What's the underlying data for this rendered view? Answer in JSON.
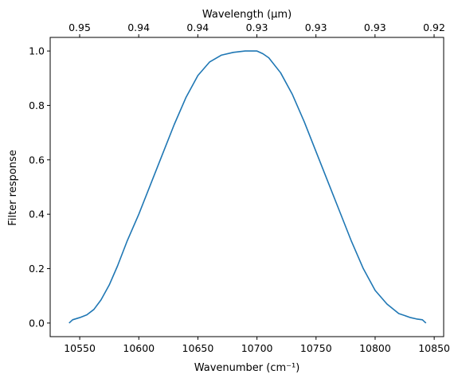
{
  "chart_data": {
    "type": "line",
    "title": "",
    "xlabel": "Wavenumber (cm⁻¹)",
    "ylabel": "Filter response",
    "top_xlabel": "Wavelength (μm)",
    "xlim": [
      10525,
      10858
    ],
    "ylim": [
      -0.05,
      1.05
    ],
    "x_ticks": [
      10550,
      10600,
      10650,
      10700,
      10750,
      10800,
      10850
    ],
    "x_tick_labels": [
      "10550",
      "10600",
      "10650",
      "10700",
      "10750",
      "10800",
      "10850"
    ],
    "y_ticks": [
      0.0,
      0.2,
      0.4,
      0.6,
      0.8,
      1.0
    ],
    "y_tick_labels": [
      "0.0",
      "0.2",
      "0.4",
      "0.6",
      "0.8",
      "1.0"
    ],
    "top_tick_labels": [
      "0.95",
      "0.94",
      "0.94",
      "0.93",
      "0.93",
      "0.93",
      "0.92"
    ],
    "grid": false,
    "color": "#1f77b4",
    "series": [
      {
        "x": [
          10541,
          10544,
          10550,
          10556,
          10562,
          10568,
          10575,
          10582,
          10590,
          10600,
          10610,
          10620,
          10630,
          10640,
          10650,
          10660,
          10670,
          10680,
          10690,
          10700,
          10705,
          10710,
          10720,
          10730,
          10740,
          10750,
          10760,
          10770,
          10780,
          10790,
          10800,
          10810,
          10820,
          10830,
          10835,
          10840,
          10843
        ],
        "y": [
          0.0,
          0.012,
          0.02,
          0.03,
          0.05,
          0.085,
          0.14,
          0.21,
          0.3,
          0.4,
          0.51,
          0.62,
          0.73,
          0.83,
          0.91,
          0.96,
          0.985,
          0.995,
          1.0,
          1.0,
          0.99,
          0.975,
          0.92,
          0.84,
          0.74,
          0.63,
          0.52,
          0.41,
          0.3,
          0.2,
          0.12,
          0.07,
          0.035,
          0.02,
          0.015,
          0.012,
          0.0
        ]
      }
    ]
  }
}
